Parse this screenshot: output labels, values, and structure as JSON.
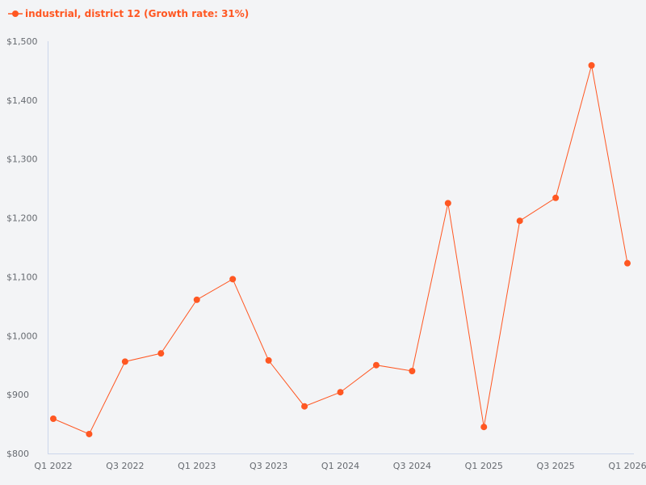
{
  "chart_data": {
    "type": "line",
    "title": "",
    "xlabel": "",
    "ylabel": "",
    "legend_position": "top-left",
    "grid": false,
    "color": "#ff5722",
    "categories": [
      "Q1 2022",
      "Q2 2022",
      "Q3 2022",
      "Q4 2022",
      "Q1 2023",
      "Q2 2023",
      "Q3 2023",
      "Q4 2023",
      "Q1 2024",
      "Q2 2024",
      "Q3 2024",
      "Q4 2024",
      "Q1 2025",
      "Q2 2025",
      "Q3 2025",
      "Q4 2025",
      "Q1 2026"
    ],
    "x_tick_labels": [
      "Q1 2022",
      "Q3 2022",
      "Q1 2023",
      "Q3 2023",
      "Q1 2024",
      "Q3 2024",
      "Q1 2025",
      "Q3 2025",
      "Q1 2026"
    ],
    "y_tick_labels": [
      "$800",
      "$900",
      "$1,000",
      "$1,100",
      "$1,200",
      "$1,300",
      "$1,400",
      "$1,500"
    ],
    "y_ticks": [
      800,
      900,
      1000,
      1100,
      1200,
      1300,
      1400,
      1500
    ],
    "ylim": [
      800,
      1500
    ],
    "series": [
      {
        "name": "industrial, district 12 (Growth rate: 31%)",
        "values": [
          859,
          833,
          956,
          970,
          1061,
          1096,
          958,
          880,
          904,
          950,
          940,
          1225,
          845,
          1195,
          1234,
          1459,
          1123
        ]
      }
    ]
  }
}
